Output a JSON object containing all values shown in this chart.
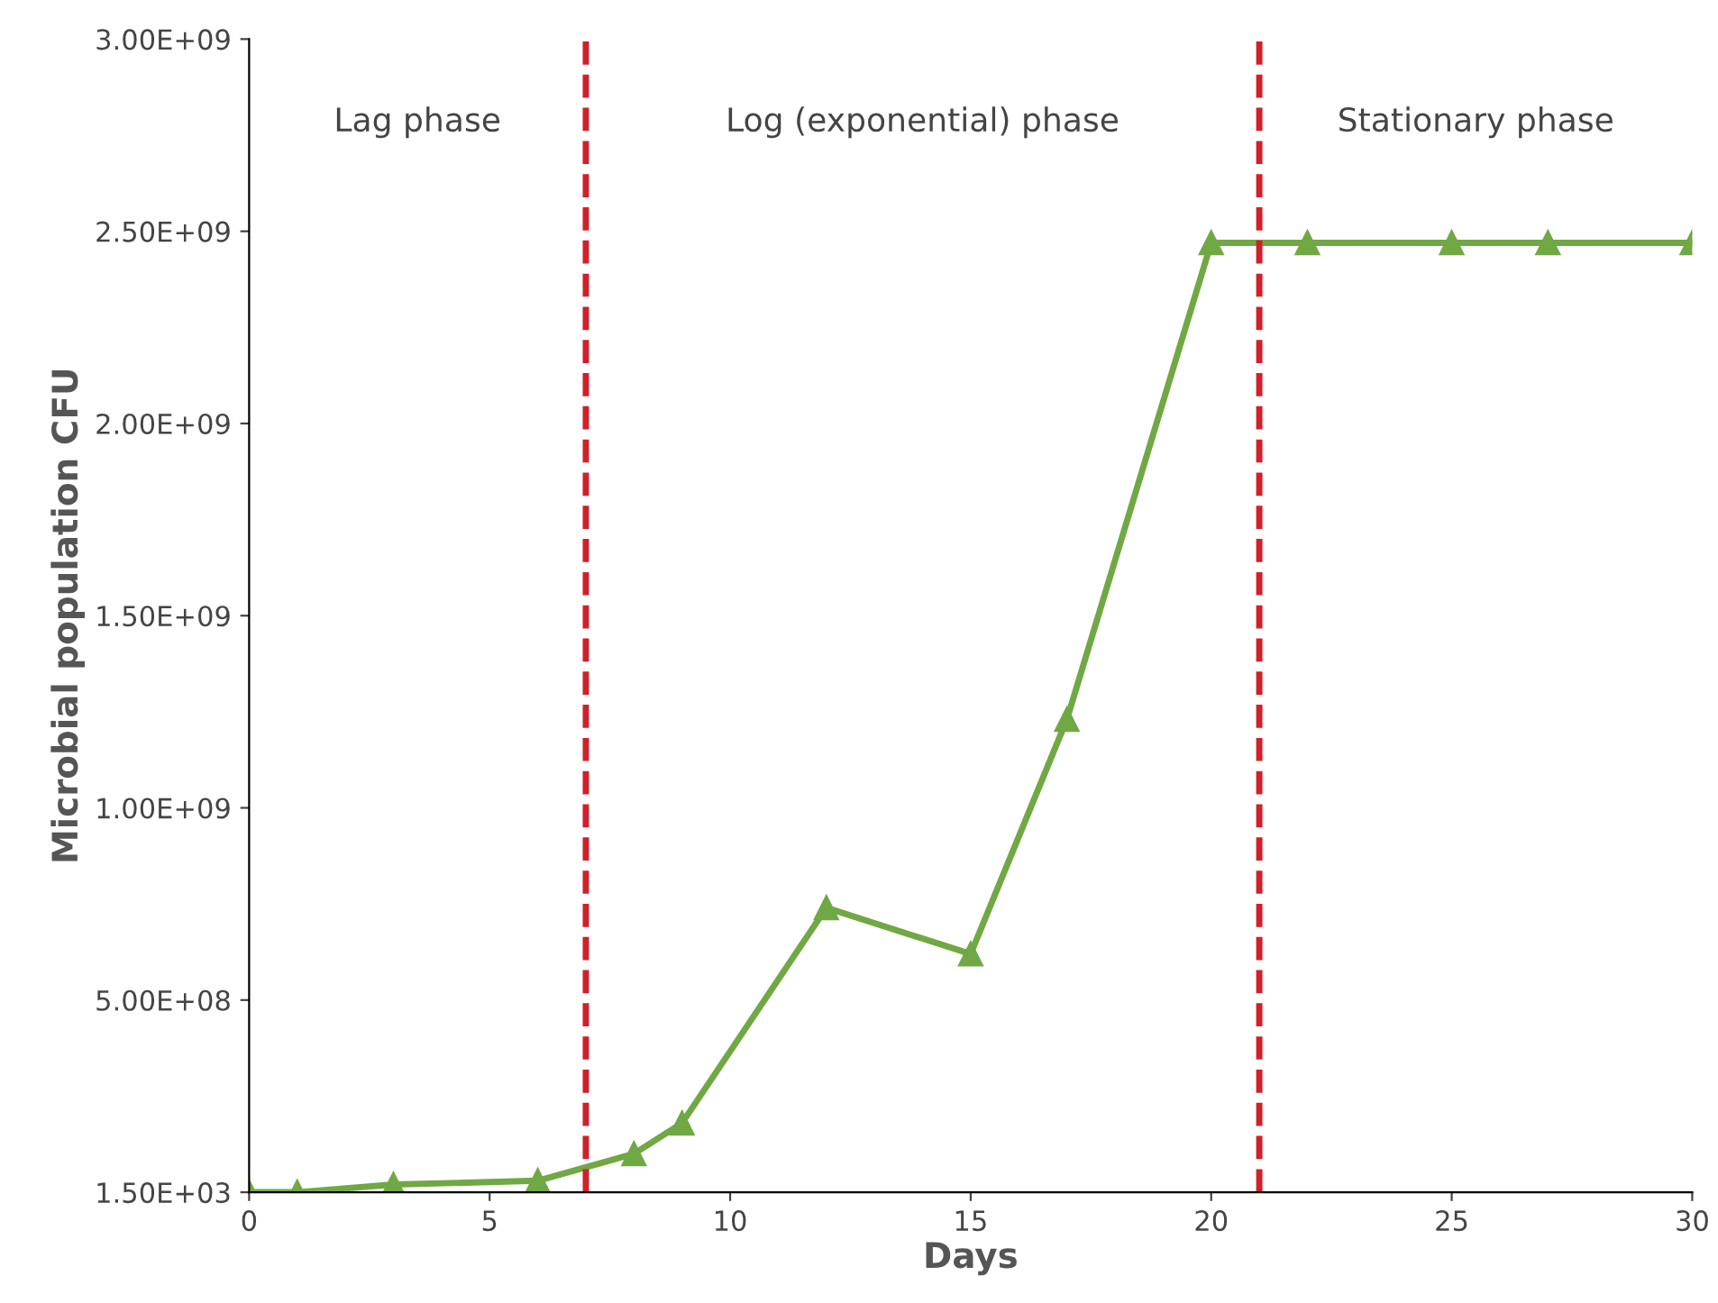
{
  "chart_data": {
    "type": "line",
    "xlabel": "Days",
    "ylabel": "Microbial population CFU",
    "x": [
      0,
      1,
      3,
      6,
      8,
      9,
      12,
      15,
      17,
      20,
      22,
      25,
      27,
      30
    ],
    "series": [
      {
        "color": "#70a844",
        "values": [
          1500,
          1500,
          20000000.0,
          30000000.0,
          100000000.0,
          180000000.0,
          740000000.0,
          620000000.0,
          1230000000.0,
          2470000000.0,
          2470000000.0,
          2470000000.0,
          2470000000.0,
          2470000000.0
        ]
      }
    ],
    "xlim": [
      0,
      30
    ],
    "xticks": [
      0,
      5,
      10,
      15,
      20,
      25,
      30
    ],
    "ylim": [
      1500,
      3000000000.0
    ],
    "yticks": [
      {
        "value": 1500,
        "label": "1.50E+03"
      },
      {
        "value": 500000000.0,
        "label": "5.00E+08"
      },
      {
        "value": 1000000000.0,
        "label": "1.00E+09"
      },
      {
        "value": 1500000000.0,
        "label": "1.50E+09"
      },
      {
        "value": 2000000000.0,
        "label": "2.00E+09"
      },
      {
        "value": 2500000000.0,
        "label": "2.50E+09"
      },
      {
        "value": 3000000000.0,
        "label": "3.00E+09"
      }
    ],
    "ref_lines": [
      {
        "axis": "x",
        "value": 7,
        "color": "#d0202a",
        "line_style": "dashed"
      },
      {
        "axis": "x",
        "value": 21,
        "color": "#d0202a",
        "line_style": "dashed"
      }
    ],
    "annotations": [
      "Lag phase",
      "Log (exponential) phase",
      "Stationary phase"
    ],
    "marker": "triangle",
    "line_style": "solid",
    "grid": false,
    "legend": false
  }
}
